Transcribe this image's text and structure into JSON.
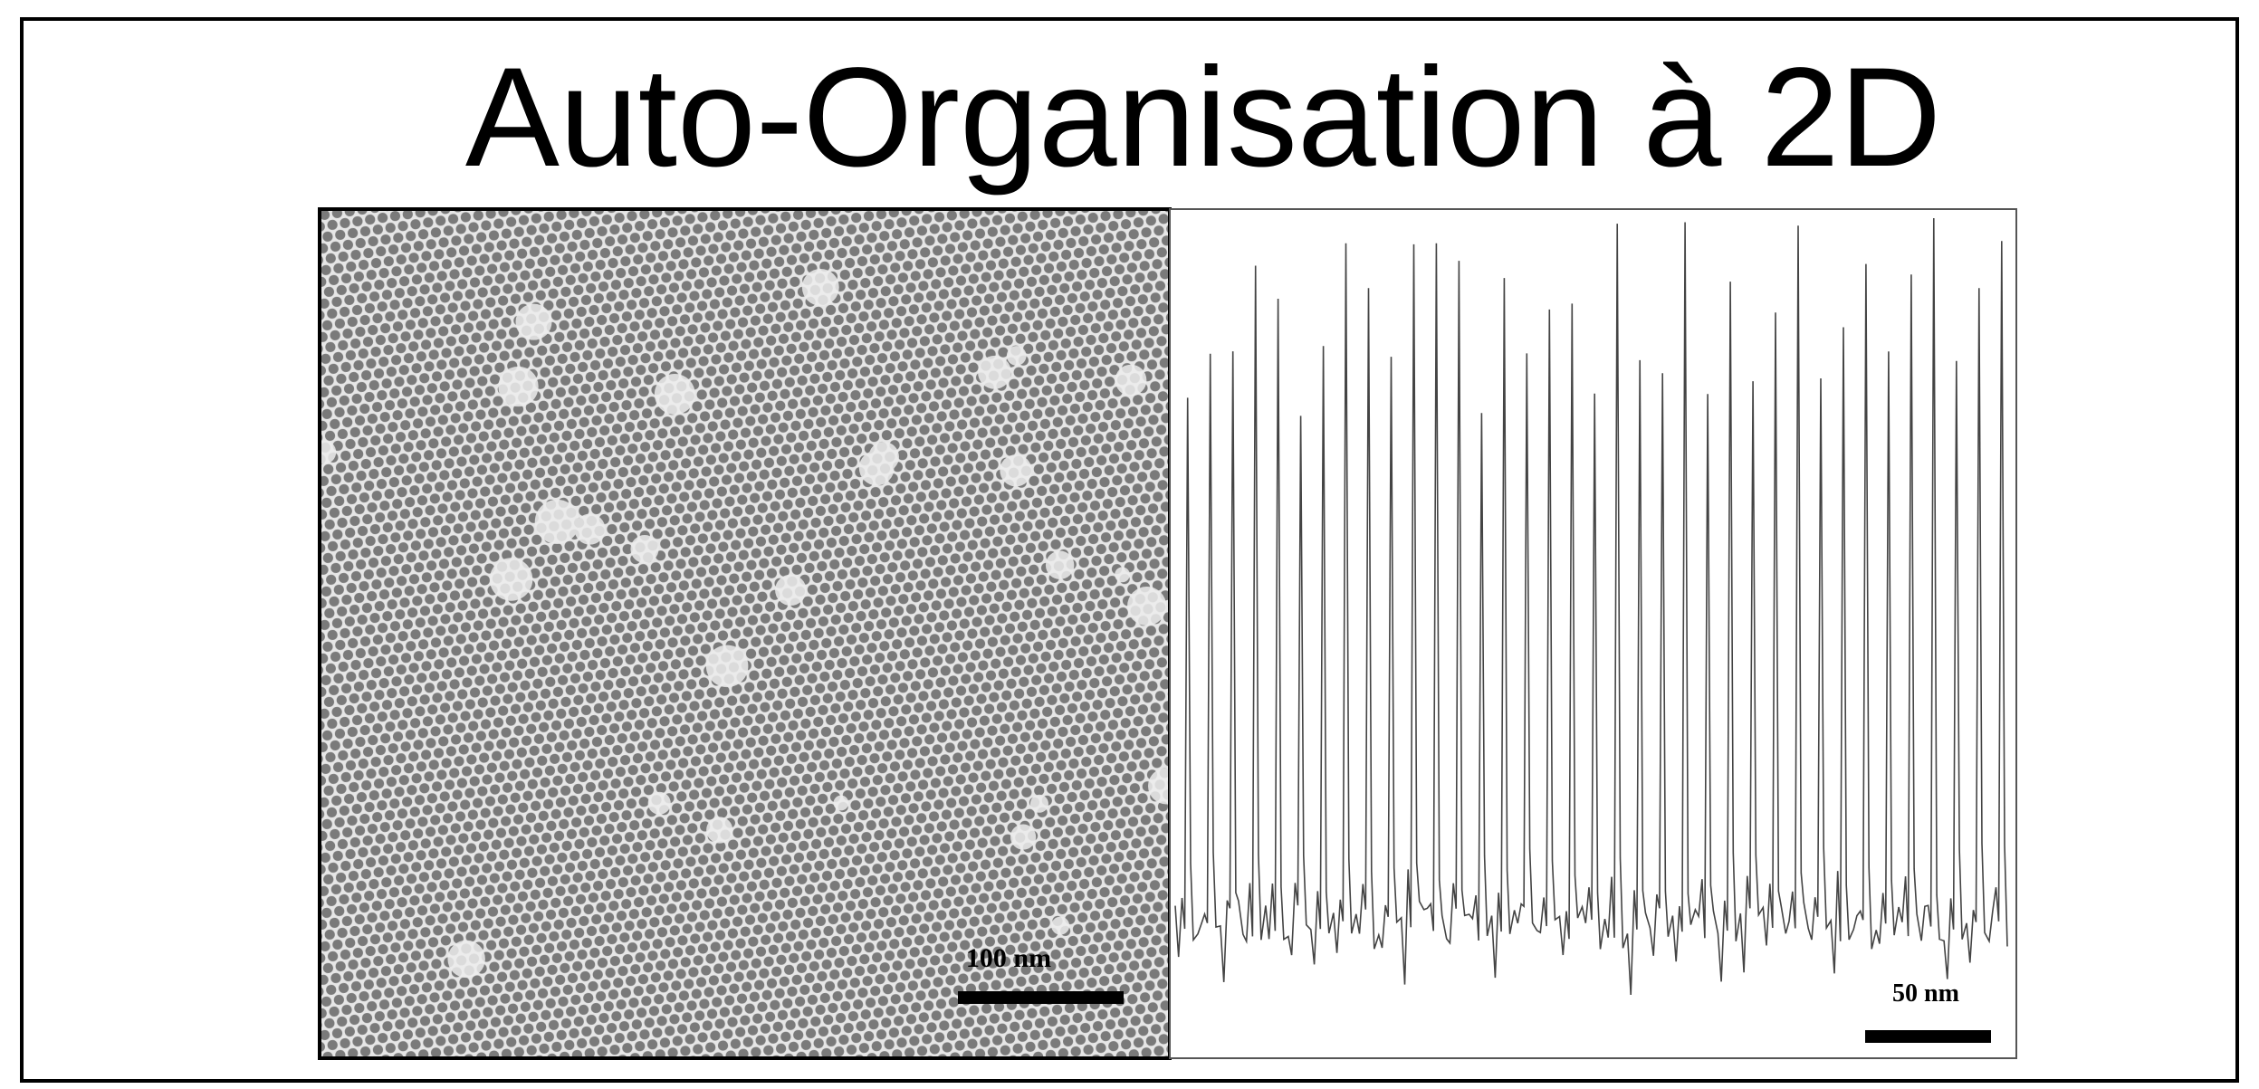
{
  "title": "Auto-Organisation à 2D",
  "panels": [
    {
      "scale_bar": "100 nm"
    },
    {
      "scale_bar": "50 nm"
    }
  ]
}
